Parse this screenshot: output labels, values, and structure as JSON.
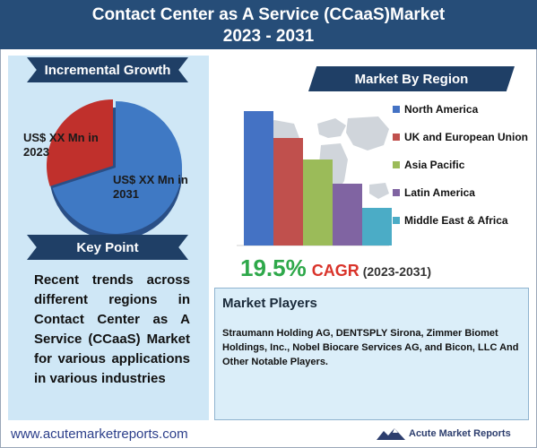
{
  "header": {
    "title_line1": "Contact Center as A Service (CCaaS)Market",
    "title_line2": "2023 - 2031"
  },
  "incremental_growth": {
    "heading": "Incremental Growth",
    "label_2023": "US$ XX Mn in 2023",
    "label_2031": "US$ XX Mn in 2031"
  },
  "key_point": {
    "heading": "Key Point",
    "text": "Recent trends across different regions in Contact Center as A Service (CCaaS) Market for various applications in various industries"
  },
  "market_by_region": {
    "heading": "Market By Region"
  },
  "cagr": {
    "value": "19.5%",
    "label": "CAGR",
    "period": "(2023-2031)"
  },
  "market_players": {
    "heading": "Market Players",
    "text": "Straumann Holding AG, DENTSPLY Sirona, Zimmer Biomet Holdings, Inc., Nobel Biocare Services AG, and Bicon, LLC And Other Notable Players."
  },
  "footer": {
    "url": "www.acutemarketreports.com",
    "brand": "Acute Market Reports"
  },
  "colors": {
    "header_bg": "#264d78",
    "ribbon_bg": "#1f3f66",
    "pie_2023": "#c0302c",
    "pie_2031": "#3f79c4",
    "cagr_value": "#2ea84a",
    "cagr_label": "#d9332a"
  },
  "chart_data": [
    {
      "type": "pie",
      "labels": [
        "US$ XX Mn in 2023",
        "US$ XX Mn in 2031"
      ],
      "values": [
        30,
        70
      ],
      "colors": [
        "#c0302c",
        "#3f79c4"
      ]
    },
    {
      "type": "bar",
      "title": "Market By Region",
      "categories": [
        "North America",
        "UK and European Union",
        "Asia Pacific",
        "Latin America",
        "Middle East & Africa"
      ],
      "values": [
        100,
        80,
        64,
        46,
        28
      ],
      "colors": [
        "#4472c4",
        "#c0504d",
        "#9bbb59",
        "#8064a2",
        "#4bacc6"
      ],
      "legend_position": "right",
      "grid": false
    }
  ]
}
